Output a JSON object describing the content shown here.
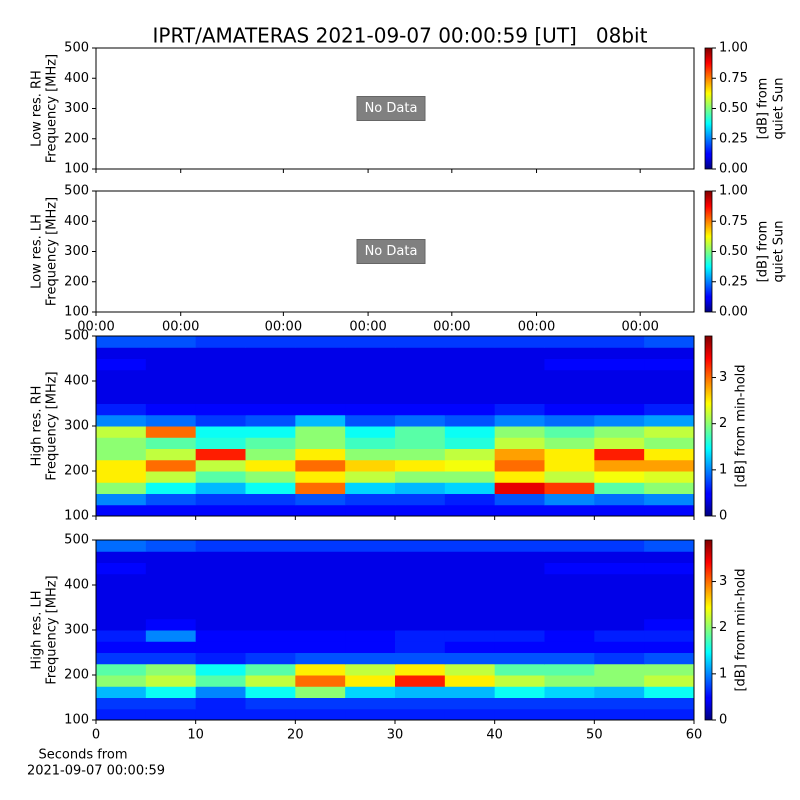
{
  "title": "IPRT/AMATERAS 2021-09-07 00:00:59 [UT]   08bit",
  "xlabel": [
    "Seconds from",
    "2021-09-07 00:00:59"
  ],
  "chart_data": [
    {
      "type": "heatmap",
      "ylabel": [
        "Low res. RH",
        "Frequency [MHz]"
      ],
      "annotation": "No Data",
      "xlim": [
        0,
        60
      ],
      "ylim": [
        100,
        500
      ],
      "yticks": [
        100,
        200,
        300,
        400,
        500
      ],
      "clim": [
        0,
        1
      ],
      "cticks": [
        {
          "value": 0,
          "label": "0.00"
        },
        {
          "value": 0.25,
          "label": "0.25"
        },
        {
          "value": 0.5,
          "label": "0.50"
        },
        {
          "value": 0.75,
          "label": "0.75"
        },
        {
          "value": 1,
          "label": "1.00"
        }
      ],
      "clabel": [
        "[dB] from",
        "quiet Sun"
      ]
    },
    {
      "type": "heatmap",
      "ylabel": [
        "Low res. LH",
        "Frequency [MHz]"
      ],
      "annotation": "No Data",
      "xlim": [
        0,
        60
      ],
      "ylim": [
        100,
        500
      ],
      "yticks": [
        100,
        200,
        300,
        400,
        500
      ],
      "xticks": [
        {
          "value": 0,
          "label": "00:00"
        },
        {
          "value": 8.5,
          "label": "00:00"
        },
        {
          "value": 18.8,
          "label": "00:00"
        },
        {
          "value": 27.3,
          "label": "00:00"
        },
        {
          "value": 35.7,
          "label": "00:00"
        },
        {
          "value": 44.2,
          "label": "00:00"
        },
        {
          "value": 54.6,
          "label": "00:00"
        }
      ],
      "clim": [
        0,
        1
      ],
      "cticks": [
        {
          "value": 0,
          "label": "0.00"
        },
        {
          "value": 0.25,
          "label": "0.25"
        },
        {
          "value": 0.5,
          "label": "0.50"
        },
        {
          "value": 0.75,
          "label": "0.75"
        },
        {
          "value": 1,
          "label": "1.00"
        }
      ],
      "clabel": [
        "[dB] from",
        "quiet Sun"
      ]
    },
    {
      "type": "heatmap",
      "ylabel": [
        "High res. RH",
        "Frequency [MHz]"
      ],
      "xlim": [
        0,
        60
      ],
      "ylim": [
        100,
        500
      ],
      "yticks": [
        100,
        200,
        300,
        400,
        500
      ],
      "clim": [
        0,
        3.9
      ],
      "cticks": [
        0,
        1,
        2,
        3
      ],
      "clabel": [
        "[dB] from min-hold"
      ],
      "x_edges": [
        0,
        5,
        10,
        15,
        20,
        25,
        30,
        35,
        40,
        45,
        50,
        55,
        60
      ],
      "y_edges": [
        100,
        125,
        150,
        175,
        200,
        225,
        250,
        275,
        300,
        325,
        350,
        375,
        400,
        425,
        450,
        475,
        500
      ],
      "z": [
        [
          0.5,
          0.5,
          0.5,
          0.5,
          0.5,
          0.5,
          0.5,
          0.5,
          0.5,
          0.5,
          0.5,
          0.5
        ],
        [
          1.0,
          0.8,
          0.7,
          0.7,
          0.8,
          0.7,
          0.7,
          0.6,
          0.8,
          1.0,
          0.9,
          1.0
        ],
        [
          2.0,
          1.5,
          1.2,
          1.5,
          3.0,
          1.3,
          1.2,
          1.3,
          3.5,
          3.2,
          1.8,
          2.0
        ],
        [
          2.5,
          2.2,
          1.8,
          2.0,
          2.5,
          2.2,
          2.0,
          2.0,
          2.5,
          2.2,
          2.4,
          2.3
        ],
        [
          2.5,
          3.0,
          2.2,
          2.5,
          3.0,
          2.6,
          2.5,
          2.4,
          3.0,
          2.5,
          2.8,
          2.8
        ],
        [
          2.0,
          2.2,
          3.3,
          2.0,
          2.5,
          2.0,
          2.0,
          2.2,
          2.8,
          2.5,
          3.3,
          2.5
        ],
        [
          2.0,
          1.8,
          1.6,
          1.8,
          2.0,
          1.7,
          1.8,
          1.6,
          2.2,
          2.0,
          2.2,
          2.0
        ],
        [
          2.2,
          3.0,
          1.5,
          1.5,
          2.0,
          1.5,
          1.8,
          1.5,
          2.0,
          1.8,
          2.0,
          2.2
        ],
        [
          1.0,
          0.9,
          0.7,
          0.8,
          1.2,
          0.8,
          0.9,
          0.8,
          1.0,
          0.9,
          1.0,
          1.1
        ],
        [
          0.6,
          0.5,
          0.5,
          0.5,
          0.5,
          0.5,
          0.5,
          0.5,
          0.6,
          0.5,
          0.5,
          0.6
        ],
        [
          0.4,
          0.4,
          0.4,
          0.4,
          0.4,
          0.4,
          0.4,
          0.4,
          0.4,
          0.4,
          0.4,
          0.4
        ],
        [
          0.4,
          0.4,
          0.4,
          0.4,
          0.4,
          0.4,
          0.4,
          0.4,
          0.4,
          0.4,
          0.4,
          0.4
        ],
        [
          0.4,
          0.4,
          0.4,
          0.4,
          0.4,
          0.4,
          0.4,
          0.4,
          0.4,
          0.4,
          0.4,
          0.4
        ],
        [
          0.5,
          0.4,
          0.4,
          0.4,
          0.4,
          0.4,
          0.4,
          0.4,
          0.4,
          0.5,
          0.5,
          0.5
        ],
        [
          0.4,
          0.4,
          0.4,
          0.4,
          0.4,
          0.4,
          0.4,
          0.4,
          0.4,
          0.4,
          0.4,
          0.4
        ],
        [
          0.8,
          0.8,
          0.7,
          0.7,
          0.7,
          0.7,
          0.7,
          0.7,
          0.7,
          0.7,
          0.7,
          0.8
        ]
      ]
    },
    {
      "type": "heatmap",
      "ylabel": [
        "High res. LH",
        "Frequency [MHz]"
      ],
      "xlim": [
        0,
        60
      ],
      "ylim": [
        100,
        500
      ],
      "yticks": [
        100,
        200,
        300,
        400,
        500
      ],
      "xticks": [
        0,
        10,
        20,
        30,
        40,
        50,
        60
      ],
      "clim": [
        0,
        3.9
      ],
      "cticks": [
        0,
        1,
        2,
        3
      ],
      "clabel": [
        "[dB] from min-hold"
      ],
      "x_edges": [
        0,
        5,
        10,
        15,
        20,
        25,
        30,
        35,
        40,
        45,
        50,
        55,
        60
      ],
      "y_edges": [
        100,
        125,
        150,
        175,
        200,
        225,
        250,
        275,
        300,
        325,
        350,
        375,
        400,
        425,
        450,
        475,
        500
      ],
      "z": [
        [
          0.6,
          0.6,
          0.6,
          0.6,
          0.6,
          0.6,
          0.6,
          0.6,
          0.6,
          0.6,
          0.6,
          0.6
        ],
        [
          0.7,
          0.7,
          0.6,
          0.7,
          0.7,
          0.7,
          0.7,
          0.7,
          0.7,
          0.7,
          0.7,
          0.7
        ],
        [
          1.2,
          1.5,
          1.0,
          1.5,
          2.0,
          1.3,
          1.2,
          1.2,
          1.5,
          1.3,
          1.2,
          1.5
        ],
        [
          2.0,
          2.2,
          1.8,
          2.2,
          3.0,
          2.5,
          3.3,
          2.5,
          2.2,
          2.0,
          2.0,
          2.2
        ],
        [
          1.8,
          2.0,
          1.5,
          1.8,
          2.5,
          2.2,
          2.5,
          2.2,
          1.8,
          1.8,
          2.0,
          2.0
        ],
        [
          0.7,
          0.7,
          0.6,
          0.7,
          0.8,
          0.8,
          0.8,
          0.8,
          0.8,
          0.8,
          0.7,
          0.8
        ],
        [
          0.5,
          0.5,
          0.5,
          0.5,
          0.5,
          0.5,
          0.6,
          0.5,
          0.5,
          0.5,
          0.5,
          0.5
        ],
        [
          0.6,
          1.0,
          0.5,
          0.5,
          0.5,
          0.5,
          0.6,
          0.6,
          0.6,
          0.5,
          0.6,
          0.6
        ],
        [
          0.4,
          0.5,
          0.4,
          0.4,
          0.4,
          0.4,
          0.4,
          0.4,
          0.4,
          0.4,
          0.4,
          0.5
        ],
        [
          0.4,
          0.4,
          0.4,
          0.4,
          0.4,
          0.4,
          0.4,
          0.4,
          0.4,
          0.4,
          0.4,
          0.4
        ],
        [
          0.4,
          0.4,
          0.4,
          0.4,
          0.4,
          0.4,
          0.4,
          0.4,
          0.4,
          0.4,
          0.4,
          0.4
        ],
        [
          0.4,
          0.4,
          0.4,
          0.4,
          0.4,
          0.4,
          0.4,
          0.4,
          0.4,
          0.4,
          0.4,
          0.4
        ],
        [
          0.4,
          0.4,
          0.4,
          0.4,
          0.4,
          0.4,
          0.4,
          0.4,
          0.4,
          0.4,
          0.4,
          0.4
        ],
        [
          0.5,
          0.4,
          0.4,
          0.4,
          0.4,
          0.4,
          0.4,
          0.4,
          0.4,
          0.5,
          0.5,
          0.5
        ],
        [
          0.4,
          0.4,
          0.4,
          0.4,
          0.4,
          0.4,
          0.4,
          0.4,
          0.4,
          0.4,
          0.4,
          0.4
        ],
        [
          0.9,
          0.8,
          0.7,
          0.7,
          0.7,
          0.7,
          0.7,
          0.7,
          0.7,
          0.7,
          0.7,
          0.8
        ]
      ]
    }
  ]
}
